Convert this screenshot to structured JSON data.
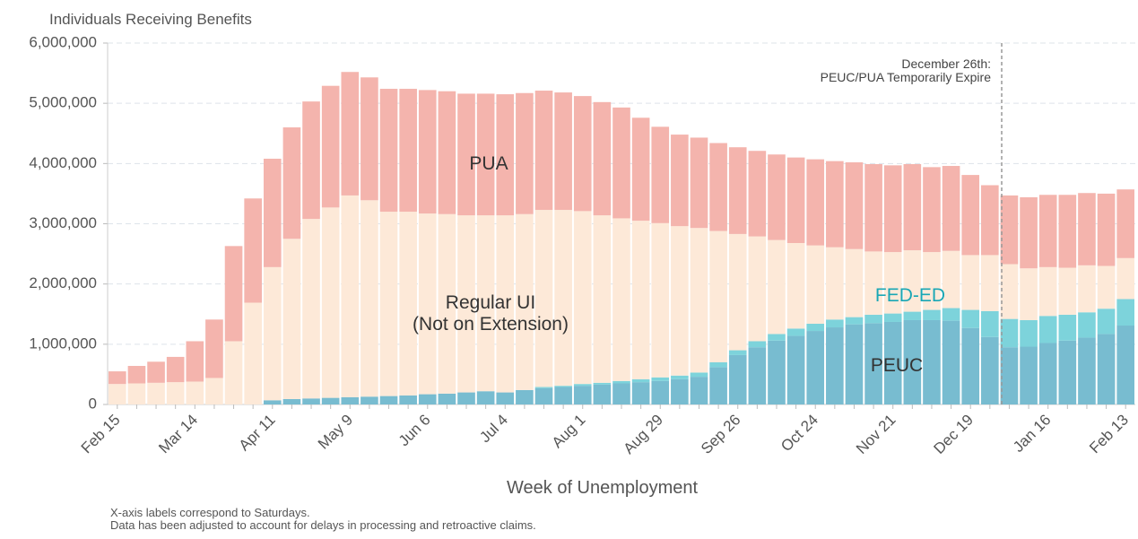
{
  "chart_data": {
    "type": "stacked_bar",
    "y_axis_label": "Individuals Receiving Benefits",
    "x_axis_label": "Week of Unemployment",
    "notes": [
      "X-axis labels correspond to Saturdays.",
      "Data has been adjusted to account for delays in processing and retroactive claims."
    ],
    "annotation": "December 26th:\nPEUC/PUA Temporarily Expire",
    "categories": [
      "Feb 15",
      null,
      null,
      null,
      "Mar 14",
      null,
      null,
      null,
      "Apr 11",
      null,
      null,
      null,
      "May 9",
      null,
      null,
      null,
      "Jun 6",
      null,
      null,
      null,
      "Jul 4",
      null,
      null,
      null,
      "Aug 1",
      null,
      null,
      null,
      "Aug 29",
      null,
      null,
      null,
      "Sep 26",
      null,
      null,
      null,
      "Oct 24",
      null,
      null,
      null,
      "Nov 21",
      null,
      null,
      null,
      "Dec 19",
      null,
      null,
      null,
      "Jan 16",
      null,
      null,
      null,
      "Feb 13"
    ],
    "ylim": [
      0,
      6000000
    ],
    "yticks": [
      0,
      {
        "value": 1000000,
        "label": "1,000,000"
      },
      {
        "value": 2000000,
        "label": "2,000,000"
      },
      {
        "value": 3000000,
        "label": "3,000,000"
      },
      {
        "value": 4000000,
        "label": "4,000,000"
      },
      {
        "value": 5000000,
        "label": "5,000,000"
      },
      {
        "value": 6000000,
        "label": "6,000,000"
      }
    ],
    "grid": true,
    "series": [
      {
        "name": "PEUC",
        "color": "#78bcd0",
        "label_color": "#333333",
        "values": [
          0,
          0,
          0,
          0,
          0,
          0,
          0,
          0,
          70000,
          90000,
          100000,
          110000,
          120000,
          130000,
          140000,
          150000,
          170000,
          180000,
          200000,
          220000,
          200000,
          240000,
          270000,
          290000,
          310000,
          330000,
          350000,
          370000,
          390000,
          420000,
          460000,
          620000,
          820000,
          950000,
          1060000,
          1140000,
          1220000,
          1280000,
          1330000,
          1350000,
          1370000,
          1400000,
          1400000,
          1390000,
          1270000,
          1120000,
          950000,
          960000,
          1020000,
          1060000,
          1110000,
          1170000,
          1310000
        ]
      },
      {
        "name": "FED-ED",
        "color": "#7dd3db",
        "label_color": "#1aa7b5",
        "values": [
          0,
          0,
          0,
          0,
          0,
          0,
          0,
          0,
          0,
          0,
          0,
          0,
          0,
          0,
          0,
          0,
          0,
          0,
          0,
          0,
          0,
          0,
          20000,
          20000,
          30000,
          30000,
          40000,
          50000,
          60000,
          60000,
          70000,
          80000,
          80000,
          100000,
          110000,
          120000,
          120000,
          130000,
          120000,
          140000,
          140000,
          140000,
          170000,
          210000,
          300000,
          430000,
          470000,
          440000,
          450000,
          430000,
          420000,
          420000,
          440000
        ]
      },
      {
        "name": "Regular UI\n(Not on Extension)",
        "color": "#fde9d8",
        "label_color": "#333333",
        "values": [
          340000,
          350000,
          360000,
          370000,
          380000,
          440000,
          1050000,
          1690000,
          2210000,
          2660000,
          2980000,
          3160000,
          3350000,
          3260000,
          3060000,
          3050000,
          3000000,
          2980000,
          2940000,
          2920000,
          2940000,
          2920000,
          2940000,
          2920000,
          2870000,
          2780000,
          2700000,
          2630000,
          2560000,
          2480000,
          2400000,
          2180000,
          1930000,
          1740000,
          1560000,
          1420000,
          1300000,
          1200000,
          1130000,
          1050000,
          1020000,
          1020000,
          960000,
          950000,
          910000,
          930000,
          910000,
          860000,
          810000,
          780000,
          780000,
          710000,
          680000
        ]
      },
      {
        "name": "PUA",
        "color": "#f4b4ad",
        "label_color": "#333333",
        "values": [
          210000,
          290000,
          350000,
          420000,
          670000,
          970000,
          1580000,
          1730000,
          1800000,
          1850000,
          1950000,
          2020000,
          2050000,
          2040000,
          2040000,
          2040000,
          2050000,
          2040000,
          2020000,
          2020000,
          2010000,
          2010000,
          1980000,
          1950000,
          1910000,
          1880000,
          1840000,
          1710000,
          1600000,
          1520000,
          1500000,
          1460000,
          1440000,
          1420000,
          1420000,
          1420000,
          1430000,
          1430000,
          1440000,
          1450000,
          1440000,
          1430000,
          1410000,
          1410000,
          1330000,
          1160000,
          1140000,
          1180000,
          1200000,
          1210000,
          1200000,
          1200000,
          1140000
        ]
      }
    ]
  }
}
